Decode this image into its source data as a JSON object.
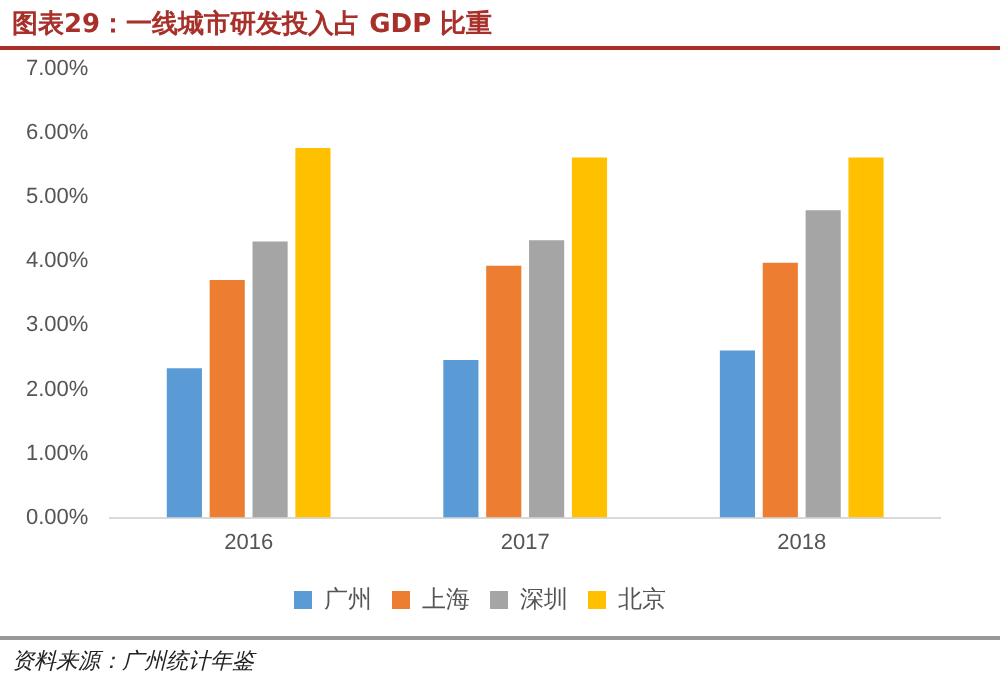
{
  "chart_data": {
    "type": "bar",
    "title": "图表29：一线城市研发投入占 GDP 比重",
    "categories": [
      "2016",
      "2017",
      "2018"
    ],
    "series": [
      {
        "name": "广州",
        "color": "#5b9bd5",
        "values": [
          2.33,
          2.46,
          2.61
        ]
      },
      {
        "name": "上海",
        "color": "#ed7d31",
        "values": [
          3.71,
          3.93,
          3.98
        ]
      },
      {
        "name": "深圳",
        "color": "#a5a5a5",
        "values": [
          4.31,
          4.33,
          4.8
        ]
      },
      {
        "name": "北京",
        "color": "#ffc000",
        "values": [
          5.77,
          5.62,
          5.62
        ]
      }
    ],
    "ylim": [
      0,
      7
    ],
    "yticks": [
      {
        "value": 0,
        "label": "0.00%"
      },
      {
        "value": 1,
        "label": "1.00%"
      },
      {
        "value": 2,
        "label": "2.00%"
      },
      {
        "value": 3,
        "label": "3.00%"
      },
      {
        "value": 4,
        "label": "4.00%"
      },
      {
        "value": 5,
        "label": "5.00%"
      },
      {
        "value": 6,
        "label": "6.00%"
      },
      {
        "value": 7,
        "label": "7.00%"
      }
    ],
    "grid": false,
    "legend": "bottom",
    "annotations": [
      "资料来源：广州统计年鉴"
    ]
  }
}
